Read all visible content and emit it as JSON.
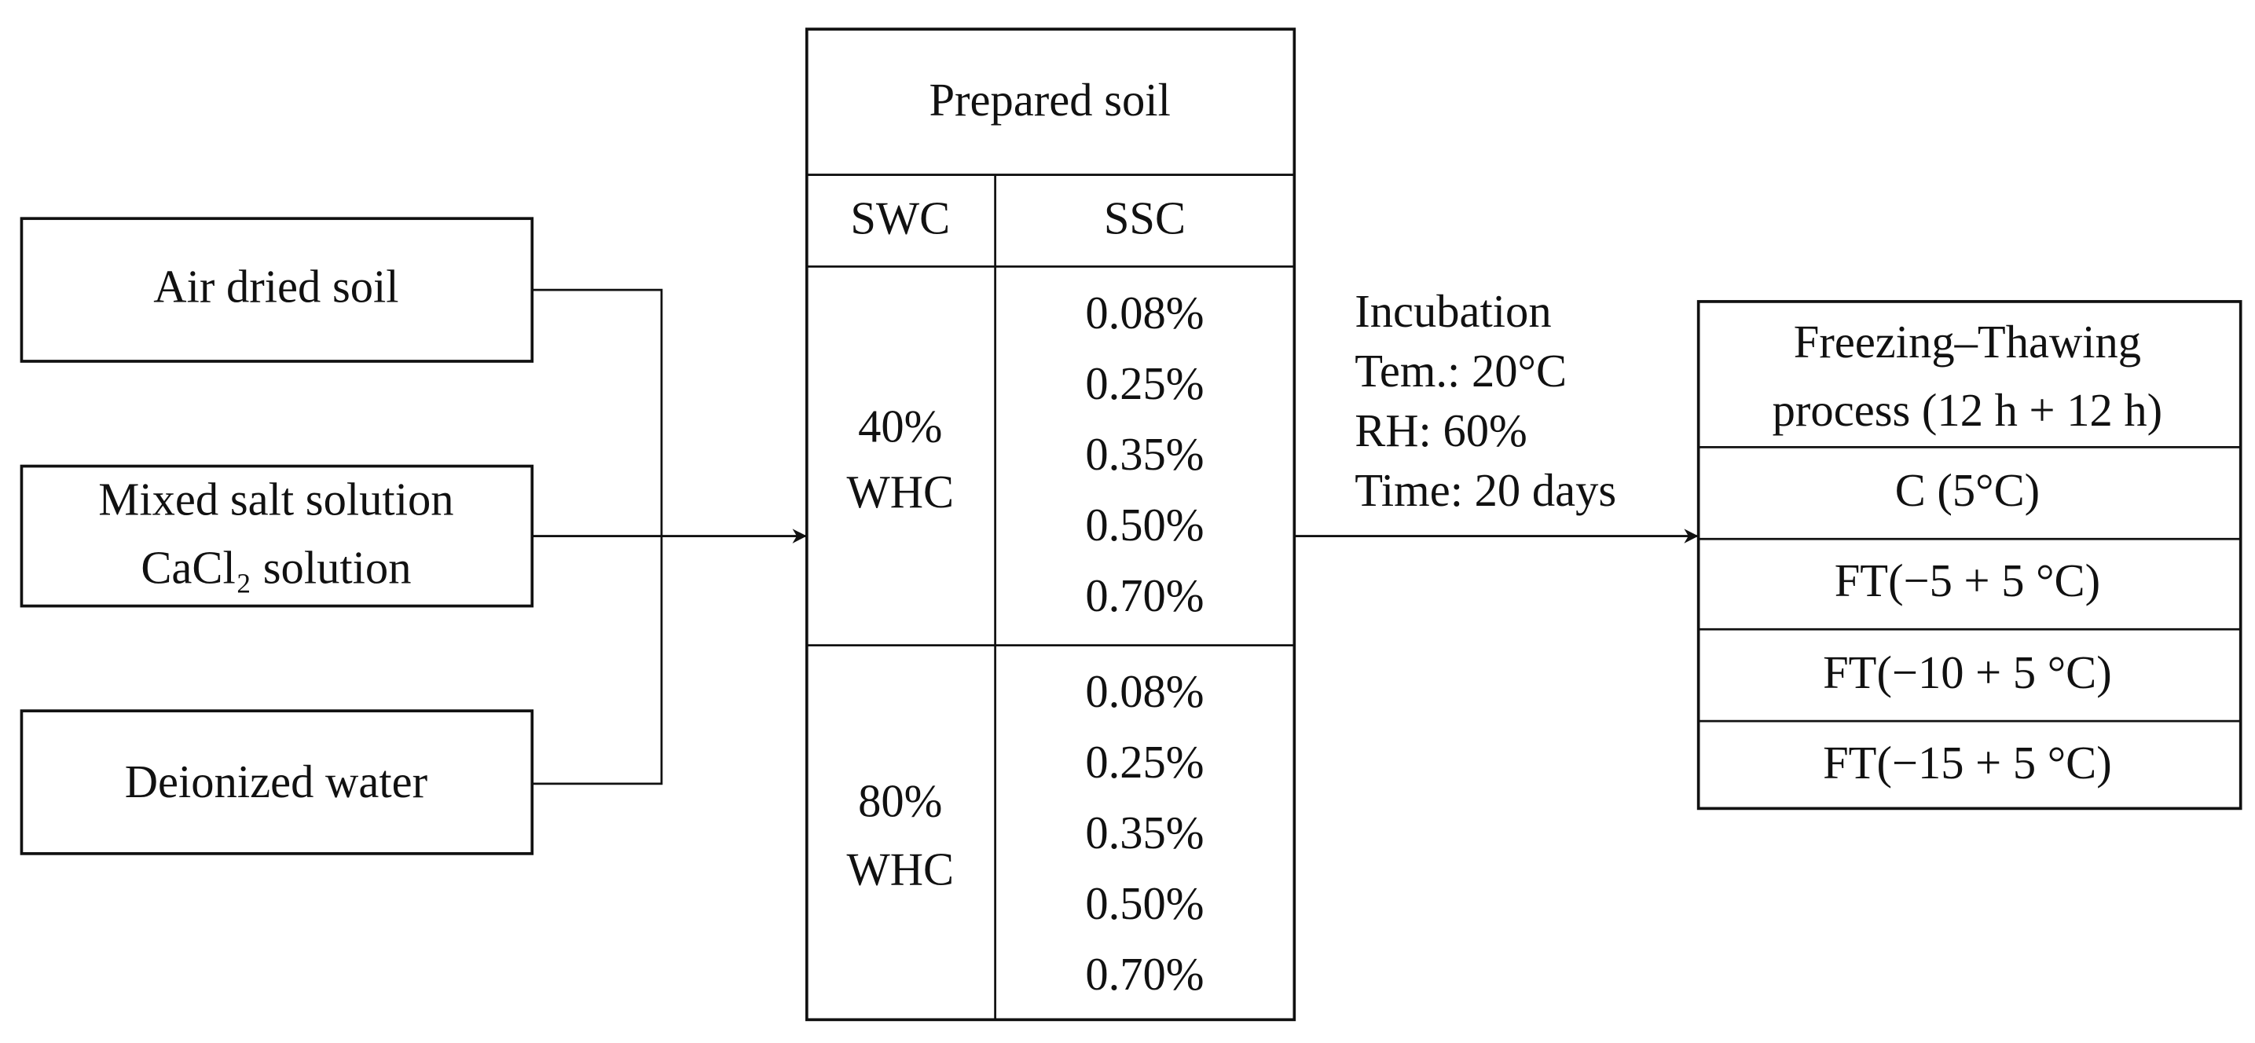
{
  "inputs": [
    "Air dried soil",
    [
      "Mixed salt solution",
      "CaCl₂ solution"
    ],
    "Deionized water"
  ],
  "table": {
    "title": "Prepared soil",
    "headers": [
      "SWC",
      "SSC"
    ],
    "groups": [
      {
        "swc": [
          "40%",
          "WHC"
        ],
        "ssc": [
          "0.08%",
          "0.25%",
          "0.35%",
          "0.50%",
          "0.70%"
        ]
      },
      {
        "swc": [
          "80%",
          "WHC"
        ],
        "ssc": [
          "0.08%",
          "0.25%",
          "0.35%",
          "0.50%",
          "0.70%"
        ]
      }
    ]
  },
  "incubation": [
    "Incubation",
    "Tem.: 20°C",
    "RH: 60%",
    "Time: 20 days"
  ],
  "process": {
    "title": [
      "Freezing–Thawing",
      "process (12 h + 12 h)"
    ],
    "treatments": [
      "C (5°C)",
      "FT(−5 + 5 °C)",
      "FT(−10 + 5 °C)",
      "FT(−15 + 5 °C)"
    ]
  }
}
